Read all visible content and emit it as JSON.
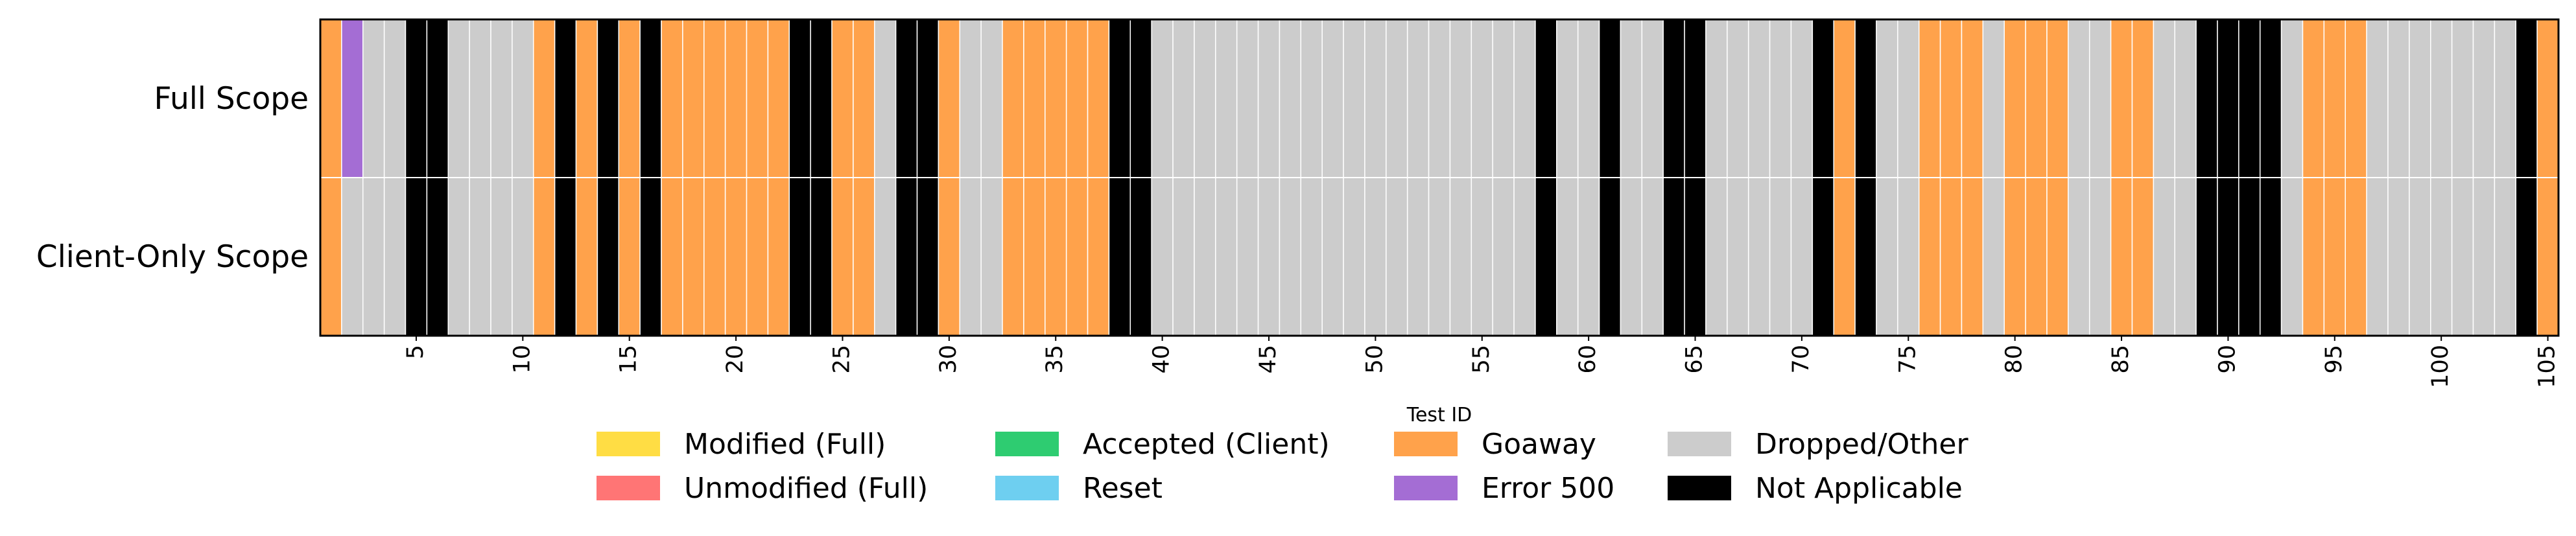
{
  "chart_data": {
    "type": "heatmap",
    "xlabel": "Test ID",
    "ylabel": "",
    "rows": [
      "Full Scope",
      "Client-Only Scope"
    ],
    "x_ticks": [
      5,
      10,
      15,
      20,
      25,
      30,
      35,
      40,
      45,
      50,
      55,
      60,
      65,
      70,
      75,
      80,
      85,
      90,
      95,
      100,
      105
    ],
    "xlim": [
      1,
      105
    ],
    "grid": true,
    "legend_position": "bottom-center",
    "categories": [
      {
        "key": "MF",
        "name": "Modified (Full)",
        "color": "#FFDD44"
      },
      {
        "key": "UF",
        "name": "Unmodified (Full)",
        "color": "#FF7575"
      },
      {
        "key": "AC",
        "name": "Accepted (Client)",
        "color": "#2ECC71"
      },
      {
        "key": "RS",
        "name": "Reset",
        "color": "#6ECFF0"
      },
      {
        "key": "GA",
        "name": "Goaway",
        "color": "#FFA24B"
      },
      {
        "key": "E5",
        "name": "Error 500",
        "color": "#A46DD4"
      },
      {
        "key": "DO",
        "name": "Dropped/Other",
        "color": "#CCCCCC"
      },
      {
        "key": "NA",
        "name": "Not Applicable",
        "color": "#000000"
      }
    ],
    "full_scope": [
      "GA",
      "E5",
      "DO",
      "DO",
      "NA",
      "NA",
      "DO",
      "DO",
      "DO",
      "DO",
      "GA",
      "NA",
      "GA",
      "NA",
      "GA",
      "NA",
      "GA",
      "GA",
      "GA",
      "GA",
      "GA",
      "GA",
      "NA",
      "NA",
      "GA",
      "GA",
      "DO",
      "NA",
      "NA",
      "GA",
      "DO",
      "DO",
      "GA",
      "GA",
      "GA",
      "GA",
      "GA",
      "NA",
      "NA",
      "DO",
      "DO",
      "DO",
      "DO",
      "DO",
      "DO",
      "DO",
      "DO",
      "DO",
      "DO",
      "DO",
      "DO",
      "DO",
      "DO",
      "DO",
      "DO",
      "DO",
      "DO",
      "NA",
      "DO",
      "DO",
      "NA",
      "DO",
      "DO",
      "NA",
      "NA",
      "DO",
      "DO",
      "DO",
      "DO",
      "DO",
      "NA",
      "GA",
      "NA",
      "DO",
      "DO",
      "GA",
      "GA",
      "GA",
      "DO",
      "GA",
      "GA",
      "GA",
      "DO",
      "DO",
      "GA",
      "GA",
      "DO",
      "DO",
      "NA",
      "NA",
      "NA",
      "NA",
      "DO",
      "GA",
      "GA",
      "GA",
      "DO",
      "DO",
      "DO",
      "DO",
      "DO",
      "DO",
      "DO",
      "NA",
      "GA"
    ],
    "client_only_scope": [
      "GA",
      "DO",
      "DO",
      "DO",
      "NA",
      "NA",
      "DO",
      "DO",
      "DO",
      "DO",
      "GA",
      "NA",
      "GA",
      "NA",
      "GA",
      "NA",
      "GA",
      "GA",
      "GA",
      "GA",
      "GA",
      "GA",
      "NA",
      "NA",
      "GA",
      "GA",
      "DO",
      "NA",
      "NA",
      "GA",
      "DO",
      "DO",
      "GA",
      "GA",
      "GA",
      "GA",
      "GA",
      "NA",
      "NA",
      "DO",
      "DO",
      "DO",
      "DO",
      "DO",
      "DO",
      "DO",
      "DO",
      "DO",
      "DO",
      "DO",
      "DO",
      "DO",
      "DO",
      "DO",
      "DO",
      "DO",
      "DO",
      "NA",
      "DO",
      "DO",
      "NA",
      "DO",
      "DO",
      "NA",
      "NA",
      "DO",
      "DO",
      "DO",
      "DO",
      "DO",
      "NA",
      "GA",
      "NA",
      "DO",
      "DO",
      "GA",
      "GA",
      "GA",
      "DO",
      "GA",
      "GA",
      "GA",
      "DO",
      "DO",
      "GA",
      "GA",
      "DO",
      "DO",
      "NA",
      "NA",
      "NA",
      "NA",
      "DO",
      "GA",
      "GA",
      "GA",
      "DO",
      "DO",
      "DO",
      "DO",
      "DO",
      "DO",
      "DO",
      "NA",
      "GA"
    ]
  }
}
